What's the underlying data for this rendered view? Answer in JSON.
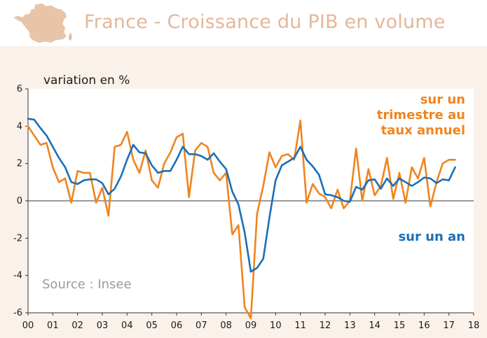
{
  "header": {
    "title": "France - Croissance du PIB en volume",
    "map_icon": "france-map-icon"
  },
  "colors": {
    "quarterly": "#f0841e",
    "annual": "#1a6fb8",
    "title": "#e3b79a",
    "map": "#e8c4a8",
    "panel": "#faf2ea"
  },
  "chart_data": {
    "type": "line",
    "ylabel": "variation en %",
    "source": "Source : Insee",
    "ylim": [
      -6,
      6
    ],
    "yticks": [
      -6,
      -4,
      -2,
      0,
      2,
      4,
      6
    ],
    "xlim": [
      2000,
      2018
    ],
    "xtick_labels": [
      "00",
      "01",
      "02",
      "03",
      "04",
      "05",
      "06",
      "07",
      "08",
      "09",
      "10",
      "11",
      "12",
      "13",
      "14",
      "15",
      "16",
      "17",
      "18"
    ],
    "legend": {
      "quarterly_lines": [
        "sur un",
        "trimestre au",
        "taux annuel"
      ],
      "annual": "sur un an"
    },
    "series": [
      {
        "name": "sur un trimestre au taux annuel",
        "color": "#f0841e",
        "points": [
          [
            2000.0,
            4.0
          ],
          [
            2000.25,
            3.5
          ],
          [
            2000.5,
            3.0
          ],
          [
            2000.75,
            3.1
          ],
          [
            2001.0,
            1.8
          ],
          [
            2001.25,
            1.0
          ],
          [
            2001.5,
            1.2
          ],
          [
            2001.75,
            -0.1
          ],
          [
            2002.0,
            1.6
          ],
          [
            2002.25,
            1.5
          ],
          [
            2002.5,
            1.5
          ],
          [
            2002.75,
            -0.1
          ],
          [
            2003.0,
            0.7
          ],
          [
            2003.25,
            -0.8
          ],
          [
            2003.5,
            2.9
          ],
          [
            2003.75,
            3.0
          ],
          [
            2004.0,
            3.7
          ],
          [
            2004.25,
            2.2
          ],
          [
            2004.5,
            1.5
          ],
          [
            2004.75,
            2.7
          ],
          [
            2005.0,
            1.1
          ],
          [
            2005.25,
            0.7
          ],
          [
            2005.5,
            2.0
          ],
          [
            2005.75,
            2.6
          ],
          [
            2006.0,
            3.4
          ],
          [
            2006.25,
            3.6
          ],
          [
            2006.5,
            0.2
          ],
          [
            2006.75,
            2.7
          ],
          [
            2007.0,
            3.1
          ],
          [
            2007.25,
            2.9
          ],
          [
            2007.5,
            1.5
          ],
          [
            2007.75,
            1.1
          ],
          [
            2008.0,
            1.5
          ],
          [
            2008.25,
            -1.8
          ],
          [
            2008.5,
            -1.3
          ],
          [
            2008.75,
            -5.7
          ],
          [
            2009.0,
            -6.3
          ],
          [
            2009.25,
            -0.7
          ],
          [
            2009.5,
            0.8
          ],
          [
            2009.75,
            2.6
          ],
          [
            2010.0,
            1.8
          ],
          [
            2010.25,
            2.4
          ],
          [
            2010.5,
            2.5
          ],
          [
            2010.75,
            2.2
          ],
          [
            2011.0,
            4.3
          ],
          [
            2011.25,
            -0.1
          ],
          [
            2011.5,
            0.9
          ],
          [
            2011.75,
            0.4
          ],
          [
            2012.0,
            0.2
          ],
          [
            2012.25,
            -0.4
          ],
          [
            2012.5,
            0.6
          ],
          [
            2012.75,
            -0.4
          ],
          [
            2013.0,
            0.0
          ],
          [
            2013.25,
            2.8
          ],
          [
            2013.5,
            0.0
          ],
          [
            2013.75,
            1.7
          ],
          [
            2014.0,
            0.3
          ],
          [
            2014.25,
            0.8
          ],
          [
            2014.5,
            2.3
          ],
          [
            2014.75,
            0.1
          ],
          [
            2015.0,
            1.5
          ],
          [
            2015.25,
            -0.1
          ],
          [
            2015.5,
            1.8
          ],
          [
            2015.75,
            1.2
          ],
          [
            2016.0,
            2.3
          ],
          [
            2016.25,
            -0.3
          ],
          [
            2016.5,
            1.0
          ],
          [
            2016.75,
            2.0
          ],
          [
            2017.0,
            2.2
          ],
          [
            2017.25,
            2.2
          ]
        ]
      },
      {
        "name": "sur un an",
        "color": "#1a6fb8",
        "points": [
          [
            2000.0,
            4.4
          ],
          [
            2000.25,
            4.35
          ],
          [
            2000.5,
            3.9
          ],
          [
            2000.75,
            3.5
          ],
          [
            2001.0,
            2.9
          ],
          [
            2001.25,
            2.3
          ],
          [
            2001.5,
            1.8
          ],
          [
            2001.75,
            1.0
          ],
          [
            2002.0,
            0.9
          ],
          [
            2002.25,
            1.1
          ],
          [
            2002.5,
            1.15
          ],
          [
            2002.75,
            1.15
          ],
          [
            2003.0,
            0.95
          ],
          [
            2003.25,
            0.35
          ],
          [
            2003.5,
            0.65
          ],
          [
            2003.75,
            1.3
          ],
          [
            2004.0,
            2.2
          ],
          [
            2004.25,
            3.0
          ],
          [
            2004.5,
            2.6
          ],
          [
            2004.75,
            2.55
          ],
          [
            2005.0,
            1.9
          ],
          [
            2005.25,
            1.5
          ],
          [
            2005.5,
            1.6
          ],
          [
            2005.75,
            1.6
          ],
          [
            2006.0,
            2.2
          ],
          [
            2006.25,
            2.9
          ],
          [
            2006.5,
            2.5
          ],
          [
            2006.75,
            2.5
          ],
          [
            2007.0,
            2.4
          ],
          [
            2007.25,
            2.2
          ],
          [
            2007.5,
            2.55
          ],
          [
            2007.75,
            2.1
          ],
          [
            2008.0,
            1.7
          ],
          [
            2008.25,
            0.5
          ],
          [
            2008.5,
            -0.2
          ],
          [
            2008.75,
            -1.7
          ],
          [
            2009.0,
            -3.8
          ],
          [
            2009.25,
            -3.6
          ],
          [
            2009.5,
            -3.1
          ],
          [
            2009.75,
            -0.9
          ],
          [
            2010.0,
            1.1
          ],
          [
            2010.25,
            1.9
          ],
          [
            2010.5,
            2.1
          ],
          [
            2010.75,
            2.3
          ],
          [
            2011.0,
            2.9
          ],
          [
            2011.25,
            2.2
          ],
          [
            2011.5,
            1.85
          ],
          [
            2011.75,
            1.4
          ],
          [
            2012.0,
            0.35
          ],
          [
            2012.25,
            0.3
          ],
          [
            2012.5,
            0.2
          ],
          [
            2012.75,
            0.0
          ],
          [
            2013.0,
            -0.05
          ],
          [
            2013.25,
            0.75
          ],
          [
            2013.5,
            0.6
          ],
          [
            2013.75,
            1.1
          ],
          [
            2014.0,
            1.15
          ],
          [
            2014.25,
            0.65
          ],
          [
            2014.5,
            1.2
          ],
          [
            2014.75,
            0.8
          ],
          [
            2015.0,
            1.2
          ],
          [
            2015.25,
            1.0
          ],
          [
            2015.5,
            0.8
          ],
          [
            2015.75,
            1.0
          ],
          [
            2016.0,
            1.25
          ],
          [
            2016.25,
            1.2
          ],
          [
            2016.5,
            0.95
          ],
          [
            2016.75,
            1.15
          ],
          [
            2017.0,
            1.1
          ],
          [
            2017.25,
            1.8
          ]
        ]
      }
    ]
  }
}
